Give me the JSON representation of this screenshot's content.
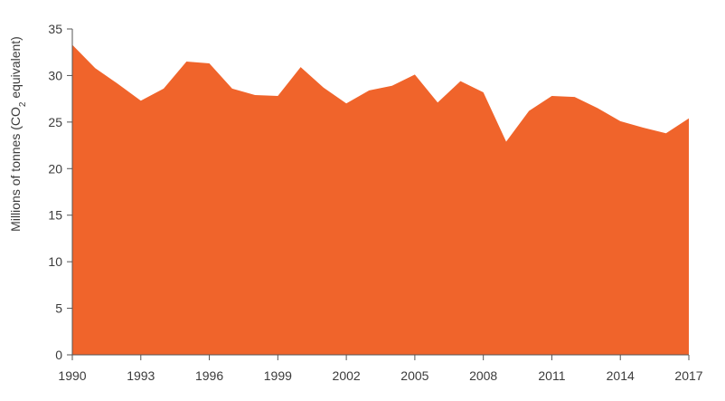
{
  "chart_data": {
    "type": "area",
    "title": "",
    "xlabel": "",
    "ylabel": {
      "prefix": "Millions of tonnes (CO",
      "subscript": "2",
      "suffix": " equivalent)"
    },
    "ylim": [
      0,
      35
    ],
    "yticks": [
      "0",
      "5",
      "10",
      "15",
      "20",
      "25",
      "30",
      "35"
    ],
    "xlim": [
      1990,
      2017
    ],
    "xticks": [
      "1990",
      "1993",
      "1996",
      "1999",
      "2002",
      "2005",
      "2008",
      "2011",
      "2014",
      "2017"
    ],
    "x": [
      1990,
      1991,
      1992,
      1993,
      1994,
      1995,
      1996,
      1997,
      1998,
      1999,
      2000,
      2001,
      2002,
      2003,
      2004,
      2005,
      2006,
      2007,
      2008,
      2009,
      2010,
      2011,
      2012,
      2013,
      2014,
      2015,
      2016,
      2017
    ],
    "values": [
      33.3,
      30.8,
      29.1,
      27.3,
      28.6,
      31.5,
      31.3,
      28.6,
      27.9,
      27.8,
      30.9,
      28.7,
      27.0,
      28.4,
      28.9,
      30.1,
      27.1,
      29.4,
      28.2,
      22.9,
      26.2,
      27.8,
      27.7,
      26.5,
      25.1,
      24.4,
      23.8,
      25.4
    ],
    "color": "#f0642b",
    "grid": false,
    "legend": "none"
  }
}
